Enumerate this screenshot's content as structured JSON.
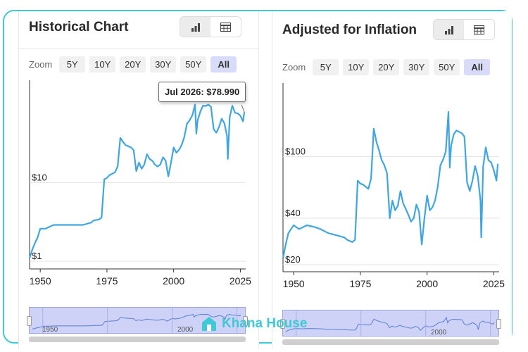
{
  "accent_color": "#3ea6e3",
  "frame_color": "#3ec9d6",
  "watermark": {
    "text": "Khana House",
    "icon": "house-logo-icon"
  },
  "zoom_label": "Zoom",
  "zoom_options": [
    "5Y",
    "10Y",
    "20Y",
    "30Y",
    "50Y",
    "All"
  ],
  "zoom_selected": "All",
  "view_toggle": {
    "chart_icon": "bar-chart-icon",
    "table_icon": "table-icon",
    "active": "chart"
  },
  "charts": [
    {
      "id": "historical",
      "title": "Historical Chart",
      "tooltip": "Jul 2026: $78.990",
      "navigator_labels": [
        "1950",
        "2000"
      ],
      "chart_data": {
        "type": "line",
        "title": "Historical Chart",
        "xlabel": "",
        "ylabel": "",
        "y_scale": "log",
        "xlim": [
          1946,
          2027
        ],
        "ylim": [
          0.8,
          200
        ],
        "x_ticks": [
          "1950",
          "1975",
          "2000",
          "2025"
        ],
        "y_ticks": [
          "$1",
          "$10"
        ],
        "grid": true,
        "series": [
          {
            "x": [
              1946,
              1947,
              1948,
              1949,
              1950,
              1952,
              1955,
              1958,
              1960,
              1963,
              1966,
              1969,
              1970,
              1972,
              1973,
              1974,
              1975,
              1976,
              1978,
              1979,
              1980,
              1981,
              1982,
              1983,
              1984,
              1985,
              1986,
              1987,
              1988,
              1989,
              1990,
              1991,
              1992,
              1993,
              1994,
              1995,
              1996,
              1997,
              1998,
              1999,
              2000,
              2001,
              2002,
              2003,
              2004,
              2005,
              2006,
              2007,
              2008,
              2008.5,
              2009,
              2010,
              2011,
              2012,
              2013,
              2014,
              2015,
              2016,
              2017,
              2018,
              2019,
              2020,
              2020.3,
              2021,
              2022,
              2023,
              2024,
              2025,
              2026,
              2026.5
            ],
            "values": [
              1.1,
              1.4,
              1.7,
              2.0,
              2.6,
              2.6,
              2.9,
              2.9,
              2.9,
              2.9,
              2.9,
              3.1,
              3.3,
              3.4,
              3.6,
              11,
              11.5,
              12.5,
              13.5,
              16,
              37,
              33,
              30,
              29,
              28,
              26,
              14,
              18,
              15,
              17,
              23,
              20,
              19,
              17,
              16,
              17,
              21,
              19,
              12,
              18,
              28,
              24,
              26,
              30,
              38,
              56,
              62,
              72,
              98,
              42,
              62,
              80,
              95,
              94,
              98,
              92,
              48,
              43,
              51,
              65,
              57,
              39,
              20,
              68,
              95,
              77,
              76,
              71,
              60,
              79
            ]
          }
        ]
      }
    },
    {
      "id": "inflation",
      "title": "Adjusted for Inflation",
      "tooltip": "",
      "navigator_labels": [
        "2000"
      ],
      "chart_data": {
        "type": "line",
        "title": "Adjusted for Inflation",
        "xlabel": "",
        "ylabel": "",
        "y_scale": "log",
        "xlim": [
          1946,
          2027
        ],
        "ylim": [
          18,
          300
        ],
        "x_ticks": [
          "1950",
          "1975",
          "2000",
          "2025"
        ],
        "y_ticks": [
          "$20",
          "$40",
          "$100"
        ],
        "grid": true,
        "series": [
          {
            "x": [
              1946,
              1947,
              1948,
              1949,
              1950,
              1952,
              1955,
              1958,
              1960,
              1963,
              1966,
              1969,
              1970,
              1972,
              1973,
              1974,
              1975,
              1976,
              1978,
              1979,
              1980,
              1981,
              1982,
              1983,
              1984,
              1985,
              1986,
              1987,
              1988,
              1989,
              1990,
              1991,
              1992,
              1993,
              1994,
              1995,
              1996,
              1997,
              1998,
              1999,
              2000,
              2001,
              2002,
              2003,
              2004,
              2005,
              2006,
              2007,
              2008,
              2008.5,
              2009,
              2010,
              2011,
              2012,
              2013,
              2014,
              2015,
              2016,
              2017,
              2018,
              2019,
              2020,
              2020.3,
              2021,
              2022,
              2023,
              2024,
              2025,
              2026,
              2026.5
            ],
            "values": [
              22,
              27,
              32,
              34,
              36,
              34,
              36,
              35,
              34,
              32,
              31,
              30,
              29,
              28,
              29,
              70,
              67,
              66,
              62,
              72,
              152,
              125,
              110,
              95,
              88,
              78,
              40,
              52,
              45,
              48,
              60,
              50,
              46,
              42,
              38,
              40,
              49,
              44,
              27,
              40,
              56,
              45,
              47,
              52,
              64,
              88,
              96,
              108,
              195,
              85,
              118,
              140,
              148,
              145,
              142,
              135,
              68,
              60,
              70,
              87,
              75,
              52,
              30,
              86,
              115,
              95,
              92,
              82,
              70,
              90
            ]
          }
        ]
      }
    }
  ]
}
